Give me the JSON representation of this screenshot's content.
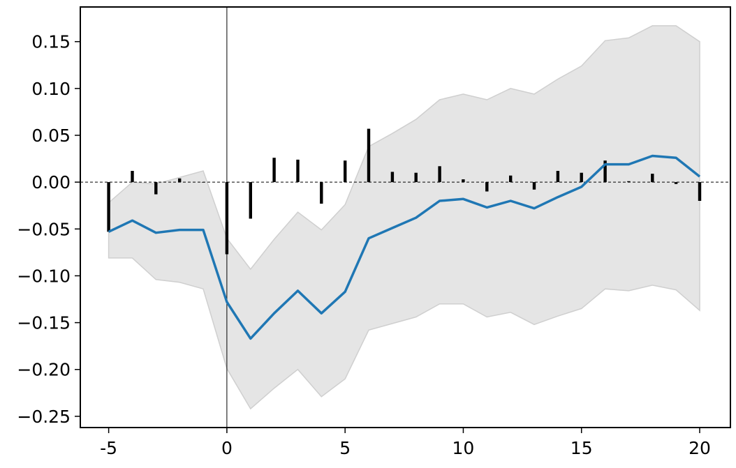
{
  "chart_data": {
    "type": "line",
    "title": "",
    "xlabel": "",
    "ylabel": "",
    "xlim": [
      -6.2,
      21.3
    ],
    "ylim": [
      -0.262,
      0.187
    ],
    "xticks": [
      {
        "value": -5,
        "label": "-5"
      },
      {
        "value": 0,
        "label": "0"
      },
      {
        "value": 5,
        "label": "5"
      },
      {
        "value": 10,
        "label": "10"
      },
      {
        "value": 15,
        "label": "15"
      },
      {
        "value": 20,
        "label": "20"
      }
    ],
    "yticks": [
      {
        "value": 0.15,
        "label": "0.15"
      },
      {
        "value": 0.1,
        "label": "0.10"
      },
      {
        "value": 0.05,
        "label": "0.05"
      },
      {
        "value": 0.0,
        "label": "0.00"
      },
      {
        "value": -0.05,
        "label": "−0.05"
      },
      {
        "value": -0.1,
        "label": "−0.10"
      },
      {
        "value": -0.15,
        "label": "−0.15"
      },
      {
        "value": -0.2,
        "label": "−0.20"
      },
      {
        "value": -0.25,
        "label": "−0.25"
      }
    ],
    "x": [
      -5,
      -4,
      -3,
      -2,
      -1,
      0,
      1,
      2,
      3,
      4,
      5,
      6,
      7,
      8,
      9,
      10,
      11,
      12,
      13,
      14,
      15,
      16,
      17,
      18,
      19,
      20
    ],
    "line": [
      -0.053,
      -0.041,
      -0.054,
      -0.051,
      -0.051,
      -0.128,
      -0.167,
      -0.14,
      -0.116,
      -0.14,
      -0.117,
      -0.06,
      -0.049,
      -0.038,
      -0.02,
      -0.018,
      -0.027,
      -0.02,
      -0.028,
      -0.016,
      -0.005,
      0.019,
      0.019,
      0.028,
      0.026,
      0.006
    ],
    "band_upper": [
      -0.022,
      0.0,
      -0.002,
      0.005,
      0.012,
      -0.06,
      -0.093,
      -0.061,
      -0.032,
      -0.051,
      -0.024,
      0.038,
      0.052,
      0.067,
      0.088,
      0.094,
      0.088,
      0.1,
      0.094,
      0.11,
      0.124,
      0.151,
      0.154,
      0.167,
      0.167,
      0.15
    ],
    "band_lower": [
      -0.081,
      -0.081,
      -0.104,
      -0.107,
      -0.114,
      -0.199,
      -0.242,
      -0.22,
      -0.2,
      -0.229,
      -0.21,
      -0.158,
      -0.151,
      -0.144,
      -0.13,
      -0.13,
      -0.144,
      -0.139,
      -0.152,
      -0.143,
      -0.135,
      -0.114,
      -0.116,
      -0.11,
      -0.115,
      -0.137
    ],
    "bars": [
      -0.053,
      0.012,
      -0.013,
      0.004,
      0.0,
      -0.077,
      -0.039,
      0.026,
      0.024,
      -0.023,
      0.023,
      0.057,
      0.011,
      0.01,
      0.017,
      0.003,
      -0.01,
      0.007,
      -0.008,
      0.012,
      0.01,
      0.023,
      0.001,
      0.009,
      -0.002,
      -0.02
    ],
    "vline_x": 0,
    "hline_y": 0,
    "grid": false,
    "colors": {
      "line": "#1f77b4",
      "band": "#e5e5e5",
      "band_edge": "#cfcfcf",
      "bars": "#000000",
      "axes": "#000000"
    }
  }
}
